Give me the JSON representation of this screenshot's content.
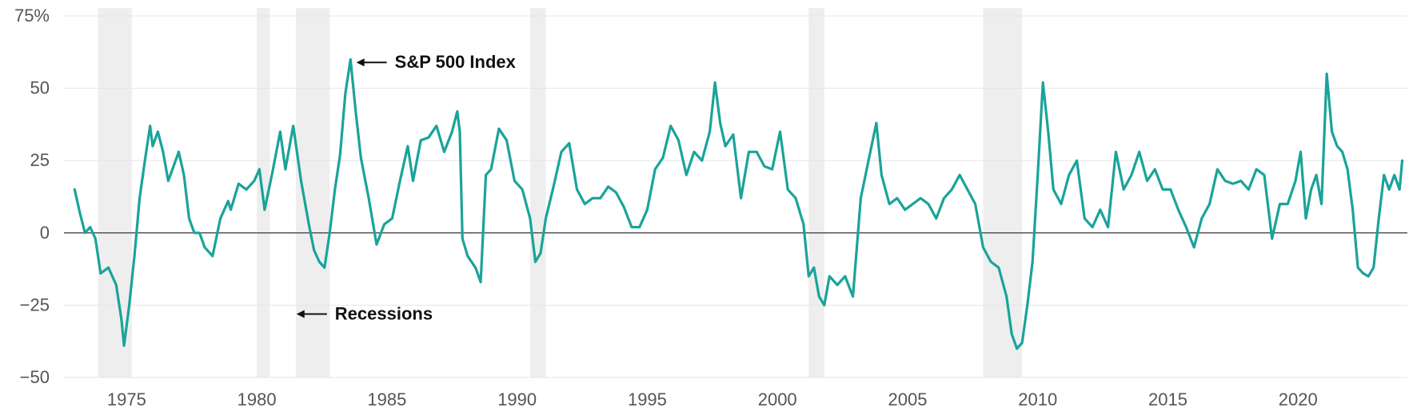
{
  "chart_data": {
    "type": "line",
    "title": "",
    "xlabel": "",
    "ylabel": "",
    "xlim": [
      1972.9,
      2024.2
    ],
    "ylim": [
      -50,
      75
    ],
    "y_unit_suffix": "%",
    "grid": true,
    "x_ticks": [
      1975,
      1980,
      1985,
      1990,
      1995,
      2000,
      2005,
      2010,
      2015,
      2020
    ],
    "y_ticks": [
      -50,
      -25,
      0,
      25,
      50,
      75
    ],
    "y_tick_labels": [
      "−50",
      "−25",
      "0",
      "25",
      "50",
      "75%"
    ],
    "x_tick_labels": [
      "1975",
      "1980",
      "1985",
      "1990",
      "1995",
      "2000",
      "2005",
      "2010",
      "2015",
      "2020"
    ],
    "colors": {
      "series": "#1aa39a",
      "recession": "#eeeeee",
      "zero_line": "#555555",
      "grid": "#e6e6e6"
    },
    "recessions": [
      [
        1973.9,
        1975.2
      ],
      [
        1980.0,
        1980.5
      ],
      [
        1981.5,
        1982.8
      ],
      [
        1990.5,
        1991.1
      ],
      [
        2001.2,
        2001.8
      ],
      [
        2007.9,
        2009.4
      ]
    ],
    "series": [
      {
        "x": [
          1973.0,
          1973.2,
          1973.4,
          1973.6,
          1973.8,
          1974.0,
          1974.3,
          1974.6,
          1974.8,
          1974.9,
          1975.1,
          1975.3,
          1975.5,
          1975.7,
          1975.9,
          1976.0,
          1976.2,
          1976.4,
          1976.6,
          1976.8,
          1977.0,
          1977.2,
          1977.4,
          1977.6,
          1977.8,
          1978.0,
          1978.3,
          1978.6,
          1978.9,
          1979.0,
          1979.3,
          1979.6,
          1979.9,
          1980.1,
          1980.3,
          1980.6,
          1980.9,
          1981.1,
          1981.4,
          1981.7,
          1982.0,
          1982.2,
          1982.4,
          1982.6,
          1982.8,
          1983.0,
          1983.2,
          1983.4,
          1983.6,
          1983.8,
          1984.0,
          1984.3,
          1984.6,
          1984.9,
          1985.2,
          1985.5,
          1985.8,
          1986.0,
          1986.3,
          1986.6,
          1986.9,
          1987.2,
          1987.5,
          1987.7,
          1987.8,
          1987.9,
          1988.1,
          1988.4,
          1988.6,
          1988.8,
          1989.0,
          1989.3,
          1989.6,
          1989.9,
          1990.2,
          1990.5,
          1990.7,
          1990.9,
          1991.1,
          1991.4,
          1991.7,
          1992.0,
          1992.3,
          1992.6,
          1992.9,
          1993.2,
          1993.5,
          1993.8,
          1994.1,
          1994.4,
          1994.7,
          1995.0,
          1995.3,
          1995.6,
          1995.9,
          1996.2,
          1996.5,
          1996.8,
          1997.1,
          1997.4,
          1997.6,
          1997.8,
          1998.0,
          1998.3,
          1998.6,
          1998.9,
          1999.2,
          1999.5,
          1999.8,
          2000.1,
          2000.4,
          2000.7,
          2001.0,
          2001.2,
          2001.4,
          2001.6,
          2001.8,
          2002.0,
          2002.3,
          2002.6,
          2002.9,
          2003.2,
          2003.5,
          2003.8,
          2004.0,
          2004.3,
          2004.6,
          2004.9,
          2005.2,
          2005.5,
          2005.8,
          2006.1,
          2006.4,
          2006.7,
          2007.0,
          2007.3,
          2007.6,
          2007.9,
          2008.2,
          2008.5,
          2008.8,
          2009.0,
          2009.2,
          2009.4,
          2009.6,
          2009.8,
          2010.0,
          2010.2,
          2010.4,
          2010.6,
          2010.9,
          2011.2,
          2011.5,
          2011.8,
          2012.1,
          2012.4,
          2012.7,
          2013.0,
          2013.3,
          2013.6,
          2013.9,
          2014.2,
          2014.5,
          2014.8,
          2015.1,
          2015.4,
          2015.7,
          2016.0,
          2016.3,
          2016.6,
          2016.9,
          2017.2,
          2017.5,
          2017.8,
          2018.1,
          2018.4,
          2018.7,
          2019.0,
          2019.3,
          2019.6,
          2019.9,
          2020.1,
          2020.3,
          2020.5,
          2020.7,
          2020.9,
          2021.1,
          2021.3,
          2021.5,
          2021.7,
          2021.9,
          2022.1,
          2022.3,
          2022.5,
          2022.7,
          2022.9,
          2023.1,
          2023.3,
          2023.5,
          2023.7,
          2023.9,
          2024.0
        ],
        "values": [
          15,
          7,
          0,
          2,
          -2,
          -14,
          -12,
          -18,
          -30,
          -39,
          -25,
          -8,
          12,
          25,
          37,
          30,
          35,
          28,
          18,
          23,
          28,
          20,
          5,
          0,
          0,
          -5,
          -8,
          5,
          11,
          8,
          17,
          15,
          18,
          22,
          8,
          21,
          35,
          22,
          37,
          18,
          3,
          -6,
          -10,
          -12,
          0,
          15,
          27,
          48,
          60,
          42,
          26,
          12,
          -4,
          3,
          5,
          18,
          30,
          18,
          32,
          33,
          37,
          28,
          35,
          42,
          35,
          -2,
          -8,
          -12,
          -17,
          20,
          22,
          36,
          32,
          18,
          15,
          5,
          -10,
          -7,
          5,
          16,
          28,
          31,
          15,
          10,
          12,
          12,
          16,
          14,
          9,
          2,
          2,
          8,
          22,
          26,
          37,
          32,
          20,
          28,
          25,
          35,
          52,
          38,
          30,
          34,
          12,
          28,
          28,
          23,
          22,
          35,
          15,
          12,
          3,
          -15,
          -12,
          -22,
          -25,
          -15,
          -18,
          -15,
          -22,
          12,
          25,
          38,
          20,
          10,
          12,
          8,
          10,
          12,
          10,
          5,
          12,
          15,
          20,
          15,
          10,
          -5,
          -10,
          -12,
          -22,
          -35,
          -40,
          -38,
          -25,
          -10,
          20,
          52,
          35,
          15,
          10,
          20,
          25,
          5,
          2,
          8,
          2,
          28,
          15,
          20,
          28,
          18,
          22,
          15,
          15,
          8,
          2,
          -5,
          5,
          10,
          22,
          18,
          17,
          18,
          15,
          22,
          20,
          -2,
          10,
          10,
          18,
          28,
          5,
          15,
          20,
          10,
          55,
          35,
          30,
          28,
          22,
          8,
          -12,
          -14,
          -15,
          -12,
          5,
          20,
          15,
          20,
          15,
          25
        ],
        "color": "#1aa39a"
      }
    ],
    "annotations": [
      {
        "text": "S&P 500 Index",
        "x": 1985.3,
        "y": 57
      },
      {
        "text": "Recessions",
        "x": 1983.0,
        "y": -30
      }
    ]
  }
}
